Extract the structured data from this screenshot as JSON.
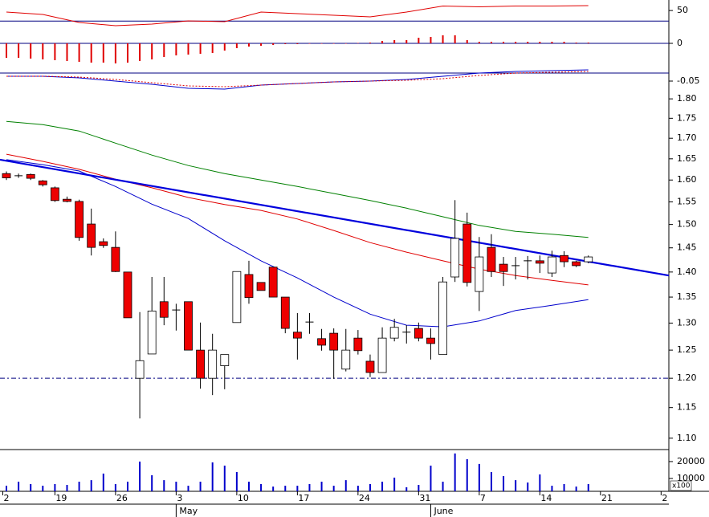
{
  "chart_data": [
    {
      "type": "line",
      "xlim": [
        -0.53,
        54.64
      ],
      "ylim": [
        12,
        70
      ],
      "yticks": [
        50
      ],
      "reference_line": 30,
      "reference_color": "#000080",
      "x": [
        0,
        3,
        6,
        9,
        12,
        15,
        18,
        21,
        24,
        27,
        30,
        33,
        36,
        39,
        42,
        45,
        48
      ],
      "series": [
        {
          "color": "#e00000",
          "values": [
            47.1,
            42.5,
            27.3,
            21.2,
            24.2,
            30.3,
            28.8,
            47.1,
            44,
            41,
            38,
            47.1,
            58.6,
            57,
            58.6,
            58.6,
            59.3
          ]
        }
      ]
    },
    {
      "type": "bar",
      "xlim": [
        -0.53,
        54.64
      ],
      "ylim": [
        -0.034,
        0.014
      ],
      "yticks": [
        0
      ],
      "reference_line": 0,
      "reference_color": "#000080",
      "color": "#e00000",
      "x": [
        0,
        1,
        2,
        3,
        4,
        5,
        6,
        7,
        8,
        9,
        10,
        11,
        12,
        13,
        14,
        15,
        16,
        17,
        18,
        19,
        20,
        21,
        22,
        23,
        24,
        25,
        26,
        27,
        28,
        29,
        30,
        31,
        32,
        33,
        34,
        35,
        36,
        37,
        38,
        39,
        40,
        41,
        42,
        43,
        44,
        45,
        46,
        47,
        48
      ],
      "values": [
        -0.018,
        -0.018,
        -0.019,
        -0.02,
        -0.021,
        -0.022,
        -0.023,
        -0.024,
        -0.024,
        -0.025,
        -0.024,
        -0.022,
        -0.02,
        -0.017,
        -0.015,
        -0.014,
        -0.013,
        -0.012,
        -0.009,
        -0.006,
        -0.004,
        -0.003,
        -0.002,
        -0.001,
        -0.001,
        -0.0005,
        0,
        0,
        0,
        0.0005,
        0.001,
        0.003,
        0.004,
        0.004,
        0.007,
        0.008,
        0.01,
        0.01,
        0.004,
        0.002,
        0.002,
        0.002,
        0.002,
        0.002,
        0.002,
        0.002,
        0.002,
        0.001,
        0.001
      ]
    },
    {
      "type": "line",
      "xlim": [
        -0.53,
        54.64
      ],
      "ylim": [
        -0.135,
        0.03
      ],
      "yticks": [
        -0.05
      ],
      "reference_line": 0,
      "reference_color": "#000080",
      "x": [
        0,
        3,
        6,
        9,
        12,
        15,
        18,
        21,
        24,
        27,
        30,
        33,
        36,
        39,
        42,
        45,
        48
      ],
      "series": [
        {
          "color": "#0000cc",
          "style": "solid",
          "values": [
            -0.02,
            -0.02,
            -0.03,
            -0.05,
            -0.07,
            -0.095,
            -0.1,
            -0.075,
            -0.065,
            -0.055,
            -0.05,
            -0.04,
            -0.02,
            0,
            0.01,
            0.015,
            0.02
          ]
        },
        {
          "color": "#e00000",
          "style": "dotted",
          "values": [
            -0.02,
            -0.02,
            -0.025,
            -0.04,
            -0.06,
            -0.08,
            -0.085,
            -0.075,
            -0.065,
            -0.055,
            -0.05,
            -0.045,
            -0.035,
            -0.015,
            0,
            0.005,
            0.01
          ]
        }
      ]
    },
    {
      "type": "candlestick",
      "log_scale": true,
      "xlim": [
        -0.53,
        54.64
      ],
      "ylim": [
        1.082,
        1.86
      ],
      "yticks": [
        {
          "value": 1.1,
          "label": "1.10"
        },
        1.15,
        {
          "value": 1.2,
          "label": "1.20"
        },
        1.25,
        {
          "value": 1.3,
          "label": "1.30"
        },
        1.35,
        {
          "value": 1.4,
          "label": "1.40"
        },
        1.45,
        {
          "value": 1.5,
          "label": "1.50"
        },
        1.55,
        {
          "value": 1.6,
          "label": "1.60"
        },
        1.65,
        {
          "value": 1.7,
          "label": "1.70"
        },
        1.75,
        {
          "value": 1.8,
          "label": "1.80"
        }
      ],
      "reference_line": 1.2,
      "reference_color": "#000080",
      "up_color": "#ffffff",
      "down_color": "#ee0000",
      "x": [
        0,
        1,
        2,
        3,
        4,
        5,
        6,
        7,
        8,
        9,
        10,
        11,
        12,
        13,
        14,
        15,
        16,
        17,
        18,
        19,
        20,
        21,
        22,
        23,
        24,
        25,
        26,
        27,
        28,
        29,
        30,
        31,
        32,
        33,
        34,
        35,
        36,
        37,
        38,
        39,
        40,
        41,
        42,
        43,
        44,
        45,
        46,
        47,
        48
      ],
      "open": [
        1.615,
        1.61,
        1.613,
        1.598,
        1.582,
        1.556,
        1.551,
        1.501,
        1.463,
        1.451,
        1.4,
        1.2,
        1.243,
        1.341,
        1.325,
        1.341,
        1.25,
        1.2,
        1.222,
        1.301,
        1.395,
        1.379,
        1.41,
        1.35,
        1.283,
        1.302,
        1.271,
        1.281,
        1.216,
        1.272,
        1.23,
        1.21,
        1.272,
        1.283,
        1.29,
        1.272,
        1.242,
        1.39,
        1.501,
        1.361,
        1.451,
        1.416,
        1.413,
        1.423,
        1.423,
        1.398,
        1.434,
        1.421,
        1.421
      ],
      "high": [
        1.62,
        1.615,
        1.615,
        1.6,
        1.585,
        1.562,
        1.555,
        1.535,
        1.47,
        1.485,
        1.4,
        1.321,
        1.39,
        1.39,
        1.337,
        1.341,
        1.301,
        1.28,
        1.242,
        1.401,
        1.423,
        1.379,
        1.41,
        1.35,
        1.319,
        1.319,
        1.289,
        1.29,
        1.289,
        1.287,
        1.242,
        1.292,
        1.308,
        1.296,
        1.301,
        1.29,
        1.39,
        1.554,
        1.526,
        1.473,
        1.479,
        1.431,
        1.431,
        1.433,
        1.434,
        1.444,
        1.443,
        1.423,
        1.434
      ],
      "low": [
        1.6,
        1.605,
        1.6,
        1.585,
        1.55,
        1.549,
        1.465,
        1.434,
        1.45,
        1.4,
        1.31,
        1.132,
        1.243,
        1.296,
        1.286,
        1.25,
        1.182,
        1.171,
        1.181,
        1.301,
        1.337,
        1.363,
        1.35,
        1.281,
        1.233,
        1.28,
        1.249,
        1.199,
        1.212,
        1.242,
        1.202,
        1.21,
        1.266,
        1.262,
        1.266,
        1.233,
        1.242,
        1.38,
        1.371,
        1.323,
        1.39,
        1.372,
        1.385,
        1.385,
        1.398,
        1.39,
        1.41,
        1.41,
        1.418
      ],
      "close": [
        1.605,
        1.61,
        1.604,
        1.589,
        1.553,
        1.551,
        1.472,
        1.451,
        1.455,
        1.401,
        1.31,
        1.231,
        1.323,
        1.311,
        1.325,
        1.25,
        1.2,
        1.25,
        1.242,
        1.401,
        1.349,
        1.363,
        1.35,
        1.29,
        1.272,
        1.302,
        1.259,
        1.25,
        1.25,
        1.249,
        1.21,
        1.272,
        1.292,
        1.283,
        1.272,
        1.262,
        1.38,
        1.47,
        1.379,
        1.431,
        1.401,
        1.401,
        1.413,
        1.423,
        1.418,
        1.431,
        1.421,
        1.413,
        1.431
      ],
      "lines": [
        {
          "color": "#008000",
          "x": [
            0,
            3,
            6,
            9,
            12,
            15,
            18,
            21,
            24,
            27,
            30,
            33,
            36,
            39,
            42,
            45,
            48
          ],
          "values": [
            1.742,
            1.734,
            1.718,
            1.688,
            1.659,
            1.634,
            1.615,
            1.6,
            1.585,
            1.569,
            1.553,
            1.536,
            1.517,
            1.498,
            1.485,
            1.479,
            1.472
          ]
        },
        {
          "color": "#e00000",
          "x": [
            0,
            3,
            6,
            9,
            12,
            15,
            18,
            21,
            24,
            27,
            30,
            33,
            36,
            39,
            42,
            45,
            48
          ],
          "values": [
            1.661,
            1.644,
            1.625,
            1.602,
            1.582,
            1.56,
            1.544,
            1.531,
            1.512,
            1.487,
            1.461,
            1.441,
            1.423,
            1.406,
            1.393,
            1.383,
            1.374
          ]
        },
        {
          "color": "#0000cc",
          "x": [
            0,
            3,
            6,
            9,
            12,
            15,
            18,
            21,
            24,
            27,
            30,
            33,
            36,
            39,
            42,
            45,
            48
          ],
          "values": [
            1.648,
            1.636,
            1.621,
            1.585,
            1.545,
            1.513,
            1.465,
            1.423,
            1.388,
            1.35,
            1.317,
            1.296,
            1.293,
            1.304,
            1.324,
            1.334,
            1.345
          ]
        }
      ],
      "trendline": {
        "color": "#0000dd",
        "x": [
          -0.53,
          54.64
        ],
        "values": [
          1.648,
          1.393
        ]
      }
    },
    {
      "type": "bar",
      "xlim": [
        -0.53,
        54.64
      ],
      "ylim": [
        2400,
        27100
      ],
      "yticks": [
        10000,
        20000
      ],
      "color": "#0000cc",
      "unit_label": "x100",
      "x": [
        0,
        1,
        2,
        3,
        4,
        5,
        6,
        7,
        8,
        9,
        10,
        11,
        12,
        13,
        14,
        15,
        16,
        17,
        18,
        19,
        20,
        21,
        22,
        23,
        24,
        25,
        26,
        27,
        28,
        29,
        30,
        31,
        32,
        33,
        34,
        35,
        36,
        37,
        38,
        39,
        40,
        41,
        42,
        43,
        44,
        45,
        46,
        47,
        48
      ],
      "values": [
        5700,
        8100,
        6700,
        5700,
        6700,
        6200,
        8100,
        9000,
        12900,
        6700,
        8100,
        20000,
        11900,
        9000,
        8100,
        5700,
        8100,
        19500,
        17600,
        13800,
        8100,
        6700,
        5200,
        5700,
        5700,
        6700,
        8100,
        5700,
        9000,
        5700,
        6700,
        8100,
        10500,
        4800,
        6200,
        17600,
        8100,
        24800,
        21400,
        18600,
        13800,
        11400,
        9000,
        7600,
        12400,
        5700,
        6700,
        5200,
        6700
      ],
      "xticks": [
        {
          "value": -0.3,
          "label": "2"
        },
        {
          "value": 4,
          "label": "19"
        },
        {
          "value": 9,
          "label": "26"
        },
        {
          "value": 14,
          "label": "3"
        },
        {
          "value": 19,
          "label": "10"
        },
        {
          "value": 24,
          "label": "17"
        },
        {
          "value": 29,
          "label": "24"
        },
        {
          "value": 34,
          "label": "31"
        },
        {
          "value": 39,
          "label": "7"
        },
        {
          "value": 44,
          "label": "14"
        },
        {
          "value": 49,
          "label": "21"
        },
        {
          "value": 54,
          "label": "2"
        }
      ],
      "month_ticks": [
        {
          "value": 14,
          "label": "May"
        },
        {
          "value": 35,
          "label": "June"
        }
      ]
    }
  ]
}
